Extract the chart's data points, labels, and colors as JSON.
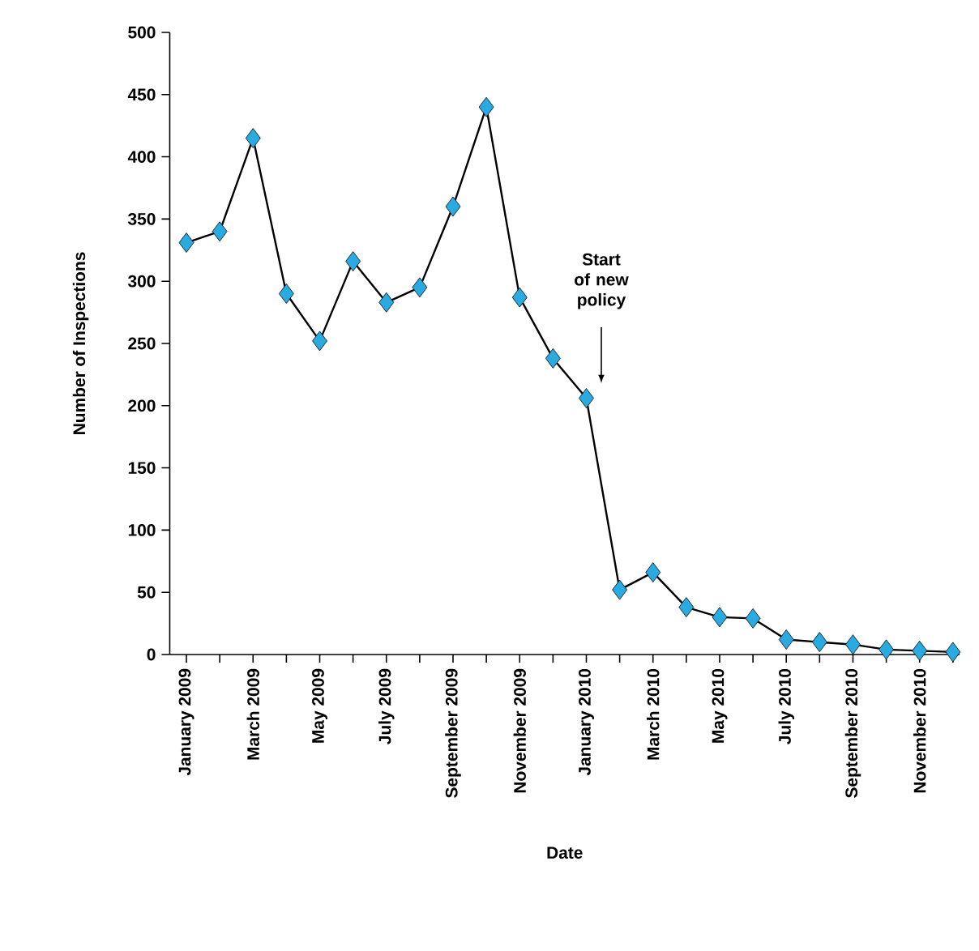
{
  "chart_data": {
    "type": "line",
    "xlabel": "Date",
    "ylabel": "Number of Inspections",
    "categories": [
      "January 2009",
      null,
      "March 2009",
      null,
      "May 2009",
      null,
      "July 2009",
      null,
      "September 2009",
      null,
      "November 2009",
      null,
      "January 2010",
      null,
      "March 2010",
      null,
      "May 2010",
      null,
      "July 2010",
      null,
      "September 2010",
      null,
      "November 2010",
      null
    ],
    "series": [
      {
        "color": "#29abe2",
        "values": [
          331,
          340,
          415,
          290,
          252,
          316,
          283,
          295,
          360,
          440,
          287,
          238,
          206,
          52,
          66,
          38,
          30,
          29,
          12,
          10,
          8,
          4,
          3,
          2
        ]
      }
    ],
    "ylim": [
      0,
      500
    ],
    "yticks": [
      0,
      50,
      100,
      150,
      200,
      250,
      300,
      350,
      400,
      450,
      500
    ],
    "marker": "diamond",
    "line_style": "solid",
    "annotations": [
      "Start of new policy"
    ]
  }
}
